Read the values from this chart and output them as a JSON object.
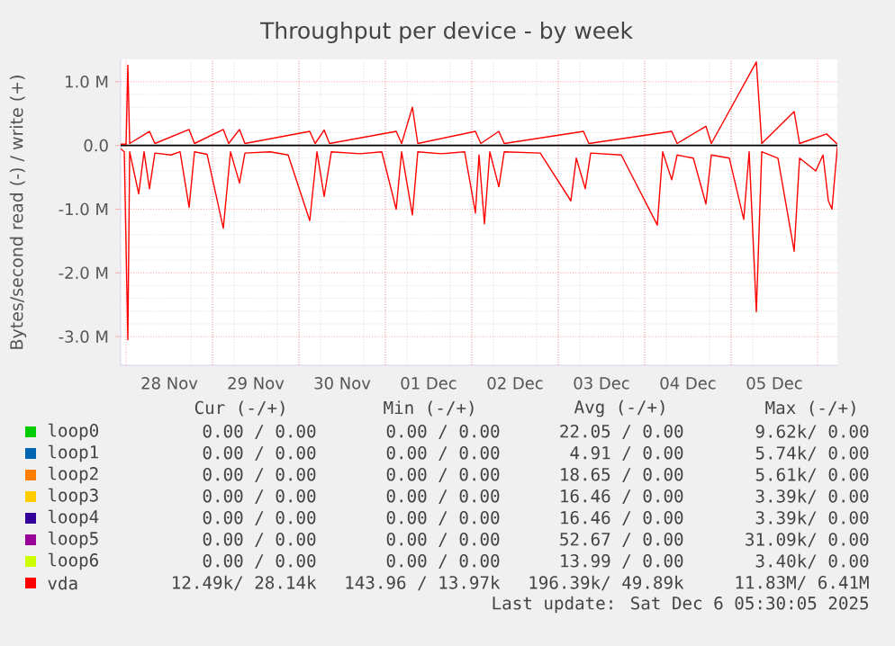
{
  "chart_data": {
    "type": "line",
    "title": "Throughput per device - by week",
    "ylabel": "Bytes/second read (-) / write (+)",
    "xlim": [
      "2025-11-27T22:30",
      "2025-12-06T05:30"
    ],
    "xticks": [
      {
        "value": "2025-11-28T00:00",
        "label": null
      },
      {
        "value": "2025-11-28T12:00",
        "label": "28 Nov"
      },
      {
        "value": "2025-11-29T00:00",
        "label": null
      },
      {
        "value": "2025-11-29T12:00",
        "label": "29 Nov"
      },
      {
        "value": "2025-11-30T00:00",
        "label": null
      },
      {
        "value": "2025-11-30T12:00",
        "label": "30 Nov"
      },
      {
        "value": "2025-12-01T00:00",
        "label": null
      },
      {
        "value": "2025-12-01T12:00",
        "label": "01 Dec"
      },
      {
        "value": "2025-12-02T00:00",
        "label": null
      },
      {
        "value": "2025-12-02T12:00",
        "label": "02 Dec"
      },
      {
        "value": "2025-12-03T00:00",
        "label": null
      },
      {
        "value": "2025-12-03T12:00",
        "label": "03 Dec"
      },
      {
        "value": "2025-12-04T00:00",
        "label": null
      },
      {
        "value": "2025-12-04T12:00",
        "label": "04 Dec"
      },
      {
        "value": "2025-12-05T00:00",
        "label": null
      },
      {
        "value": "2025-12-05T12:00",
        "label": "05 Dec"
      },
      {
        "value": "2025-12-06T00:00",
        "label": null
      }
    ],
    "ylim": [
      -3450000,
      1350000
    ],
    "yticks": [
      {
        "value": -3000000,
        "label": "-3.0 M"
      },
      {
        "value": -2000000,
        "label": "-2.0 M"
      },
      {
        "value": -1000000,
        "label": "-1.0 M"
      },
      {
        "value": 0,
        "label": "0.0"
      },
      {
        "value": 1000000,
        "label": "1.0 M"
      }
    ],
    "grid": true,
    "legend": "bottom",
    "line_style": "solid",
    "marker": "none",
    "ref_lines": [
      {
        "axis": "y",
        "value": 0,
        "color": "#000000"
      }
    ],
    "series": [
      {
        "name": "loop0",
        "color": "#00cc00"
      },
      {
        "name": "loop1",
        "color": "#0066b3"
      },
      {
        "name": "loop2",
        "color": "#ff8000"
      },
      {
        "name": "loop3",
        "color": "#ffcc00"
      },
      {
        "name": "loop4",
        "color": "#330099"
      },
      {
        "name": "loop5",
        "color": "#990099"
      },
      {
        "name": "loop6",
        "color": "#ccff00"
      },
      {
        "name": "vda",
        "color": "#ff0000",
        "x": [
          "2025-11-27T22:30",
          "2025-11-27T23:30",
          "2025-11-28T00:30",
          "2025-11-28T01:00",
          "2025-11-28T03:30",
          "2025-11-28T05:00",
          "2025-11-28T06:30",
          "2025-11-28T08:00",
          "2025-11-28T12:30",
          "2025-11-28T15:00",
          "2025-11-28T17:30",
          "2025-11-28T19:00",
          "2025-11-28T22:30",
          "2025-11-29T03:00",
          "2025-11-29T05:00",
          "2025-11-29T07:30",
          "2025-11-29T09:00",
          "2025-11-29T16:00",
          "2025-11-29T21:00",
          "2025-11-30T03:00",
          "2025-11-30T05:00",
          "2025-11-30T07:00",
          "2025-11-30T09:00",
          "2025-11-30T17:00",
          "2025-11-30T23:00",
          "2025-12-01T03:00",
          "2025-12-01T04:30",
          "2025-12-01T07:30",
          "2025-12-01T09:00",
          "2025-12-01T15:30",
          "2025-12-01T22:00",
          "2025-12-02T01:00",
          "2025-12-02T02:00",
          "2025-12-02T03:30",
          "2025-12-02T05:00",
          "2025-12-02T07:30",
          "2025-12-02T09:00",
          "2025-12-02T19:00",
          "2025-12-03T03:30",
          "2025-12-03T05:00",
          "2025-12-03T07:30",
          "2025-12-03T09:00",
          "2025-12-03T17:30",
          "2025-12-04T03:30",
          "2025-12-04T05:00",
          "2025-12-04T07:30",
          "2025-12-04T09:00",
          "2025-12-04T13:30",
          "2025-12-04T17:00",
          "2025-12-04T18:30",
          "2025-12-04T23:30",
          "2025-12-05T03:30",
          "2025-12-05T05:00",
          "2025-12-05T07:00",
          "2025-12-05T08:30",
          "2025-12-05T13:00",
          "2025-12-05T17:30",
          "2025-12-05T19:00",
          "2025-12-05T23:30",
          "2025-12-06T01:30",
          "2025-12-06T03:00",
          "2025-12-06T04:00",
          "2025-12-06T05:30"
        ],
        "values": [
          -50000,
          -100000,
          -3050000,
          -100000,
          -760000,
          -100000,
          -680000,
          -120000,
          -150000,
          -100000,
          -970000,
          -100000,
          -140000,
          -1300000,
          -100000,
          -590000,
          -120000,
          -100000,
          -150000,
          -1180000,
          -100000,
          -800000,
          -100000,
          -130000,
          -100000,
          -1000000,
          -100000,
          -1090000,
          -100000,
          -130000,
          -100000,
          -1060000,
          -150000,
          -1230000,
          -100000,
          -650000,
          -100000,
          -120000,
          -870000,
          -200000,
          -680000,
          -120000,
          -150000,
          -1250000,
          -100000,
          -540000,
          -150000,
          -200000,
          -920000,
          -150000,
          -200000,
          -1160000,
          -100000,
          -2610000,
          -100000,
          -200000,
          -1660000,
          -200000,
          -400000,
          -150000,
          -870000,
          -1000000,
          -20000
        ]
      },
      {
        "color": "#ff0000",
        "x": [
          "2025-11-27T22:30",
          "2025-11-28T00:00",
          "2025-11-28T00:30",
          "2025-11-28T01:00",
          "2025-11-28T06:30",
          "2025-11-28T08:00",
          "2025-11-28T17:30",
          "2025-11-28T19:00",
          "2025-11-29T03:00",
          "2025-11-29T04:30",
          "2025-11-29T07:30",
          "2025-11-29T09:00",
          "2025-11-30T03:00",
          "2025-11-30T04:30",
          "2025-11-30T07:00",
          "2025-11-30T08:30",
          "2025-12-01T03:00",
          "2025-12-01T04:30",
          "2025-12-01T07:30",
          "2025-12-01T09:00",
          "2025-12-02T01:00",
          "2025-12-02T02:30",
          "2025-12-02T07:30",
          "2025-12-02T09:00",
          "2025-12-03T07:00",
          "2025-12-03T08:30",
          "2025-12-04T07:30",
          "2025-12-04T09:00",
          "2025-12-04T17:00",
          "2025-12-04T18:30",
          "2025-12-05T07:00",
          "2025-12-05T08:30",
          "2025-12-05T17:30",
          "2025-12-05T19:00",
          "2025-12-06T02:30",
          "2025-12-06T05:30"
        ],
        "values": [
          20000,
          20000,
          1260000,
          30000,
          220000,
          30000,
          250000,
          30000,
          250000,
          30000,
          250000,
          30000,
          220000,
          30000,
          240000,
          30000,
          220000,
          30000,
          600000,
          30000,
          220000,
          30000,
          220000,
          30000,
          220000,
          30000,
          220000,
          30000,
          300000,
          30000,
          1310000,
          30000,
          530000,
          30000,
          180000,
          20000
        ]
      }
    ],
    "annotations": [
      "Cur (-/+)",
      "Min (-/+)",
      "Avg (-/+)",
      "Max (-/+)",
      "0.00 /  0.00",
      "0.00 /  0.00",
      "22.05 /  0.00",
      "9.62k/  0.00",
      "0.00 /  0.00",
      "0.00 /  0.00",
      "4.91 /  0.00",
      "5.74k/  0.00",
      "0.00 /  0.00",
      "0.00 /  0.00",
      "18.65 /  0.00",
      "5.61k/  0.00",
      "0.00 /  0.00",
      "0.00 /  0.00",
      "16.46 /  0.00",
      "3.39k/  0.00",
      "0.00 /  0.00",
      "0.00 /  0.00",
      "16.46 /  0.00",
      "3.39k/  0.00",
      "0.00 /  0.00",
      "0.00 /  0.00",
      "52.67 /  0.00",
      "31.09k/  0.00",
      "0.00 /  0.00",
      "0.00 /  0.00",
      "13.99 /  0.00",
      "3.40k/  0.00",
      "12.49k/ 28.14k",
      "143.96 / 13.97k",
      "196.39k/ 49.89k",
      "11.83M/  6.41M",
      "Last update: Sat Dec  6 05:30:05 2025"
    ]
  }
}
